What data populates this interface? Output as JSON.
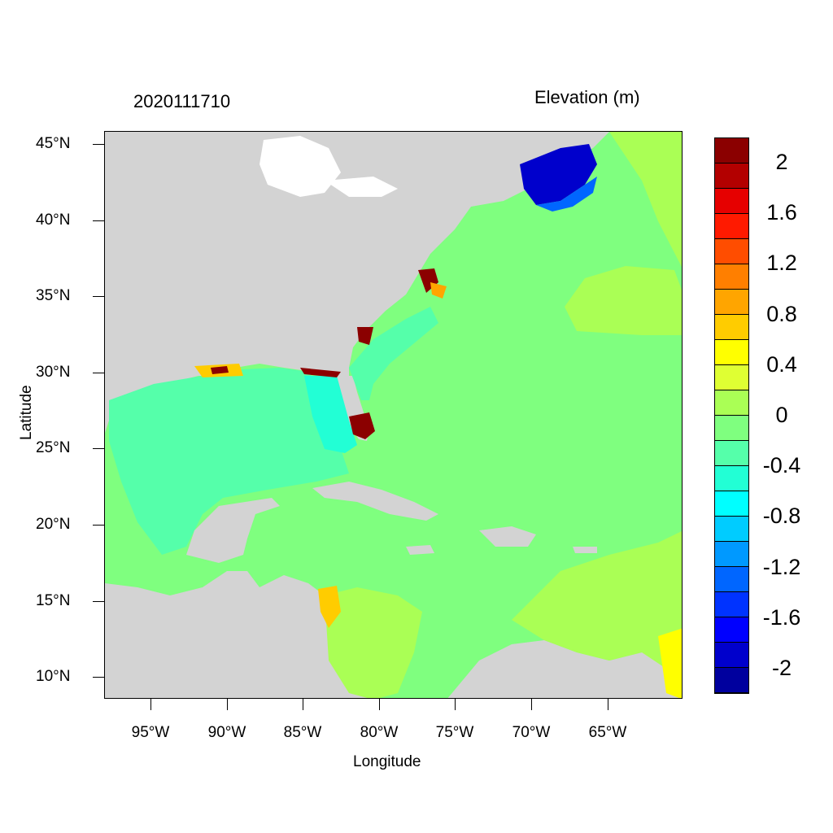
{
  "header": {
    "timestamp": "2020111710",
    "variable": "Elevation (m)"
  },
  "axes": {
    "xlabel": "Longitude",
    "ylabel": "Latitude",
    "xticks": [
      "95°W",
      "90°W",
      "85°W",
      "80°W",
      "75°W",
      "70°W",
      "65°W"
    ],
    "yticks": [
      "45°N",
      "40°N",
      "35°N",
      "30°N",
      "25°N",
      "20°N",
      "15°N",
      "10°N"
    ],
    "lon_range": [
      -98,
      -60.3
    ],
    "lat_range": [
      8.7,
      45.9
    ]
  },
  "colorbar": {
    "labels": [
      "2",
      "1.6",
      "1.2",
      "0.8",
      "0.4",
      "0",
      "-0.4",
      "-0.8",
      "-1.2",
      "-1.6",
      "-2"
    ],
    "colors": [
      "#8b0000",
      "#b30000",
      "#e60000",
      "#ff1a00",
      "#ff4d00",
      "#ff7f00",
      "#ffa500",
      "#ffcc00",
      "#ffff00",
      "#dfff33",
      "#aaff55",
      "#7fff7f",
      "#55ffaa",
      "#22ffd5",
      "#00ffff",
      "#00ccff",
      "#0099ff",
      "#0066ff",
      "#0033ff",
      "#0000ff",
      "#0000cc",
      "#00009e"
    ]
  },
  "map_colors": {
    "land": "#d3d3d3",
    "water_white": "#ffffff",
    "open_ocean": "#7fff7f",
    "gulf": "#55ffaa",
    "nearshore": "#22ffd5",
    "positive_low": "#aaff55",
    "surge_high": "#8b0000",
    "gulf_of_maine": "#0000cc"
  }
}
